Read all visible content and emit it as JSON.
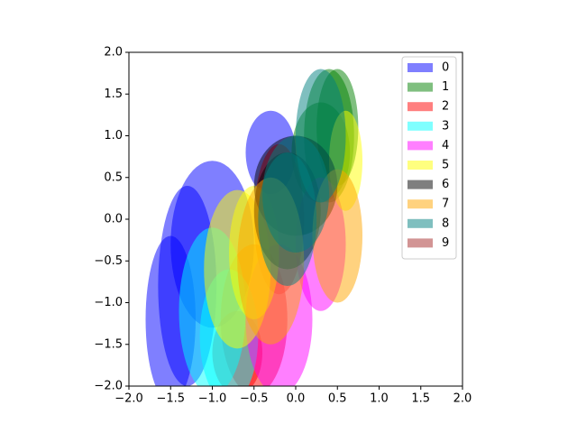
{
  "chart_data": {
    "type": "ellipse",
    "alpha": 0.5,
    "legend": "upper right",
    "xlim": [
      -2,
      2
    ],
    "ylim": [
      -2,
      2
    ],
    "xticks": [
      {
        "value": -2,
        "label": "−2.0"
      },
      {
        "value": -1.5,
        "label": "−1.5"
      },
      {
        "value": -1,
        "label": "−1.0"
      },
      {
        "value": -0.5,
        "label": "−0.5"
      },
      {
        "value": 0,
        "label": "0.0"
      },
      0.5,
      {
        "value": 1,
        "label": "1.0"
      },
      1.5,
      {
        "value": 2,
        "label": "2.0"
      }
    ],
    "yticks": [
      {
        "value": -2,
        "label": "−2.0"
      },
      {
        "value": -1.5,
        "label": "−1.5"
      },
      {
        "value": -1,
        "label": "−1.0"
      },
      {
        "value": -0.5,
        "label": "−0.5"
      },
      {
        "value": 0,
        "label": "0.0"
      },
      0.5,
      {
        "value": 1,
        "label": "1.0"
      },
      1.5,
      {
        "value": 2,
        "label": "2.0"
      }
    ],
    "series": [
      {
        "name": "0",
        "color": "blue",
        "x": [
          -1.3,
          -1.0,
          -1.5,
          -0.3
        ],
        "values": [
          -0.8,
          -0.3,
          -1.2,
          0.8
        ],
        "width": [
          0.7,
          1.0,
          0.6,
          0.6
        ],
        "height": [
          2.4,
          2.0,
          2.0,
          1.0
        ]
      },
      {
        "name": "1",
        "color": "green",
        "x": [
          0.4,
          0.5,
          0.3
        ],
        "values": [
          1.0,
          1.1,
          0.8
        ],
        "width": [
          0.6,
          0.5,
          0.7
        ],
        "height": [
          1.6,
          1.4,
          1.2
        ]
      },
      {
        "name": "2",
        "color": "red",
        "x": [
          -0.5,
          -0.2,
          -0.7
        ],
        "values": [
          -1.2,
          0,
          -1.6
        ],
        "width": [
          0.8,
          0.6,
          0.6
        ],
        "height": [
          1.8,
          1.8,
          1.0
        ]
      },
      {
        "name": "3",
        "color": "cyan",
        "x": [
          -1.0,
          -0.8
        ],
        "values": [
          -1.1,
          -1.4
        ],
        "width": [
          0.8,
          0.7
        ],
        "height": [
          2.0,
          1.6
        ]
      },
      {
        "name": "4",
        "color": "magenta",
        "x": [
          -0.2,
          0.3
        ],
        "values": [
          -1.2,
          -0.3
        ],
        "width": [
          0.8,
          0.6
        ],
        "height": [
          1.8,
          1.6
        ]
      },
      {
        "name": "5",
        "color": "yellow",
        "x": [
          -0.7,
          0.6,
          -0.5
        ],
        "values": [
          -0.6,
          0.7,
          -0.4
        ],
        "width": [
          0.8,
          0.4,
          0.6
        ],
        "height": [
          1.9,
          1.2,
          1.6
        ]
      },
      {
        "name": "6",
        "color": "black",
        "x": [
          0,
          -0.1
        ],
        "values": [
          0.4,
          0.1
        ],
        "width": [
          1.0,
          0.8
        ],
        "height": [
          1.2,
          1.4
        ]
      },
      {
        "name": "7",
        "color": "orange",
        "x": [
          -0.3,
          0.5
        ],
        "values": [
          -0.5,
          -0.2
        ],
        "width": [
          0.8,
          0.6
        ],
        "height": [
          2.0,
          1.6
        ]
      },
      {
        "name": "8",
        "color": "teal",
        "x": [
          -0.1,
          0.3,
          0.0
        ],
        "values": [
          0,
          1.0,
          0.3
        ],
        "width": [
          0.7,
          0.6,
          0.8
        ],
        "height": [
          1.6,
          1.6,
          1.4
        ]
      },
      {
        "name": "9",
        "color": "brown",
        "x": [],
        "values": [],
        "width": [],
        "height": []
      }
    ]
  }
}
